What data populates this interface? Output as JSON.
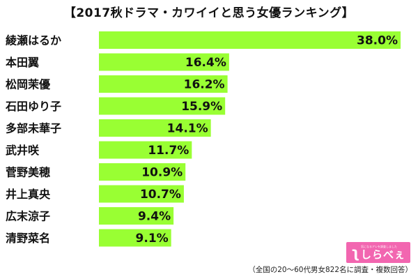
{
  "chart_data": {
    "type": "bar",
    "orientation": "horizontal",
    "title": "【2017秋ドラマ・カワイイと思う女優ランキング】",
    "categories": [
      "綾瀬はるか",
      "本田翼",
      "松岡茉優",
      "石田ゆり子",
      "多部未華子",
      "武井咲",
      "菅野美穂",
      "井上真央",
      "広末涼子",
      "清野菜名"
    ],
    "values": [
      38.0,
      16.4,
      16.2,
      15.9,
      14.1,
      11.7,
      10.9,
      10.7,
      9.4,
      9.1
    ],
    "value_labels": [
      "38.0%",
      "16.4%",
      "16.2%",
      "15.9%",
      "14.1%",
      "11.7%",
      "10.9%",
      "10.7%",
      "9.4%",
      "9.1%"
    ],
    "xlim": [
      0,
      38.0
    ],
    "bar_color": "#99ff33",
    "grid": false,
    "legend": "none"
  },
  "footnote": "（全国の20～60代男女822名に調査・複数回答）",
  "logo": {
    "mark": "ʅ",
    "tagline": "気になるアレを調査しました",
    "word": "しらべぇ",
    "color": "#f266b0"
  }
}
